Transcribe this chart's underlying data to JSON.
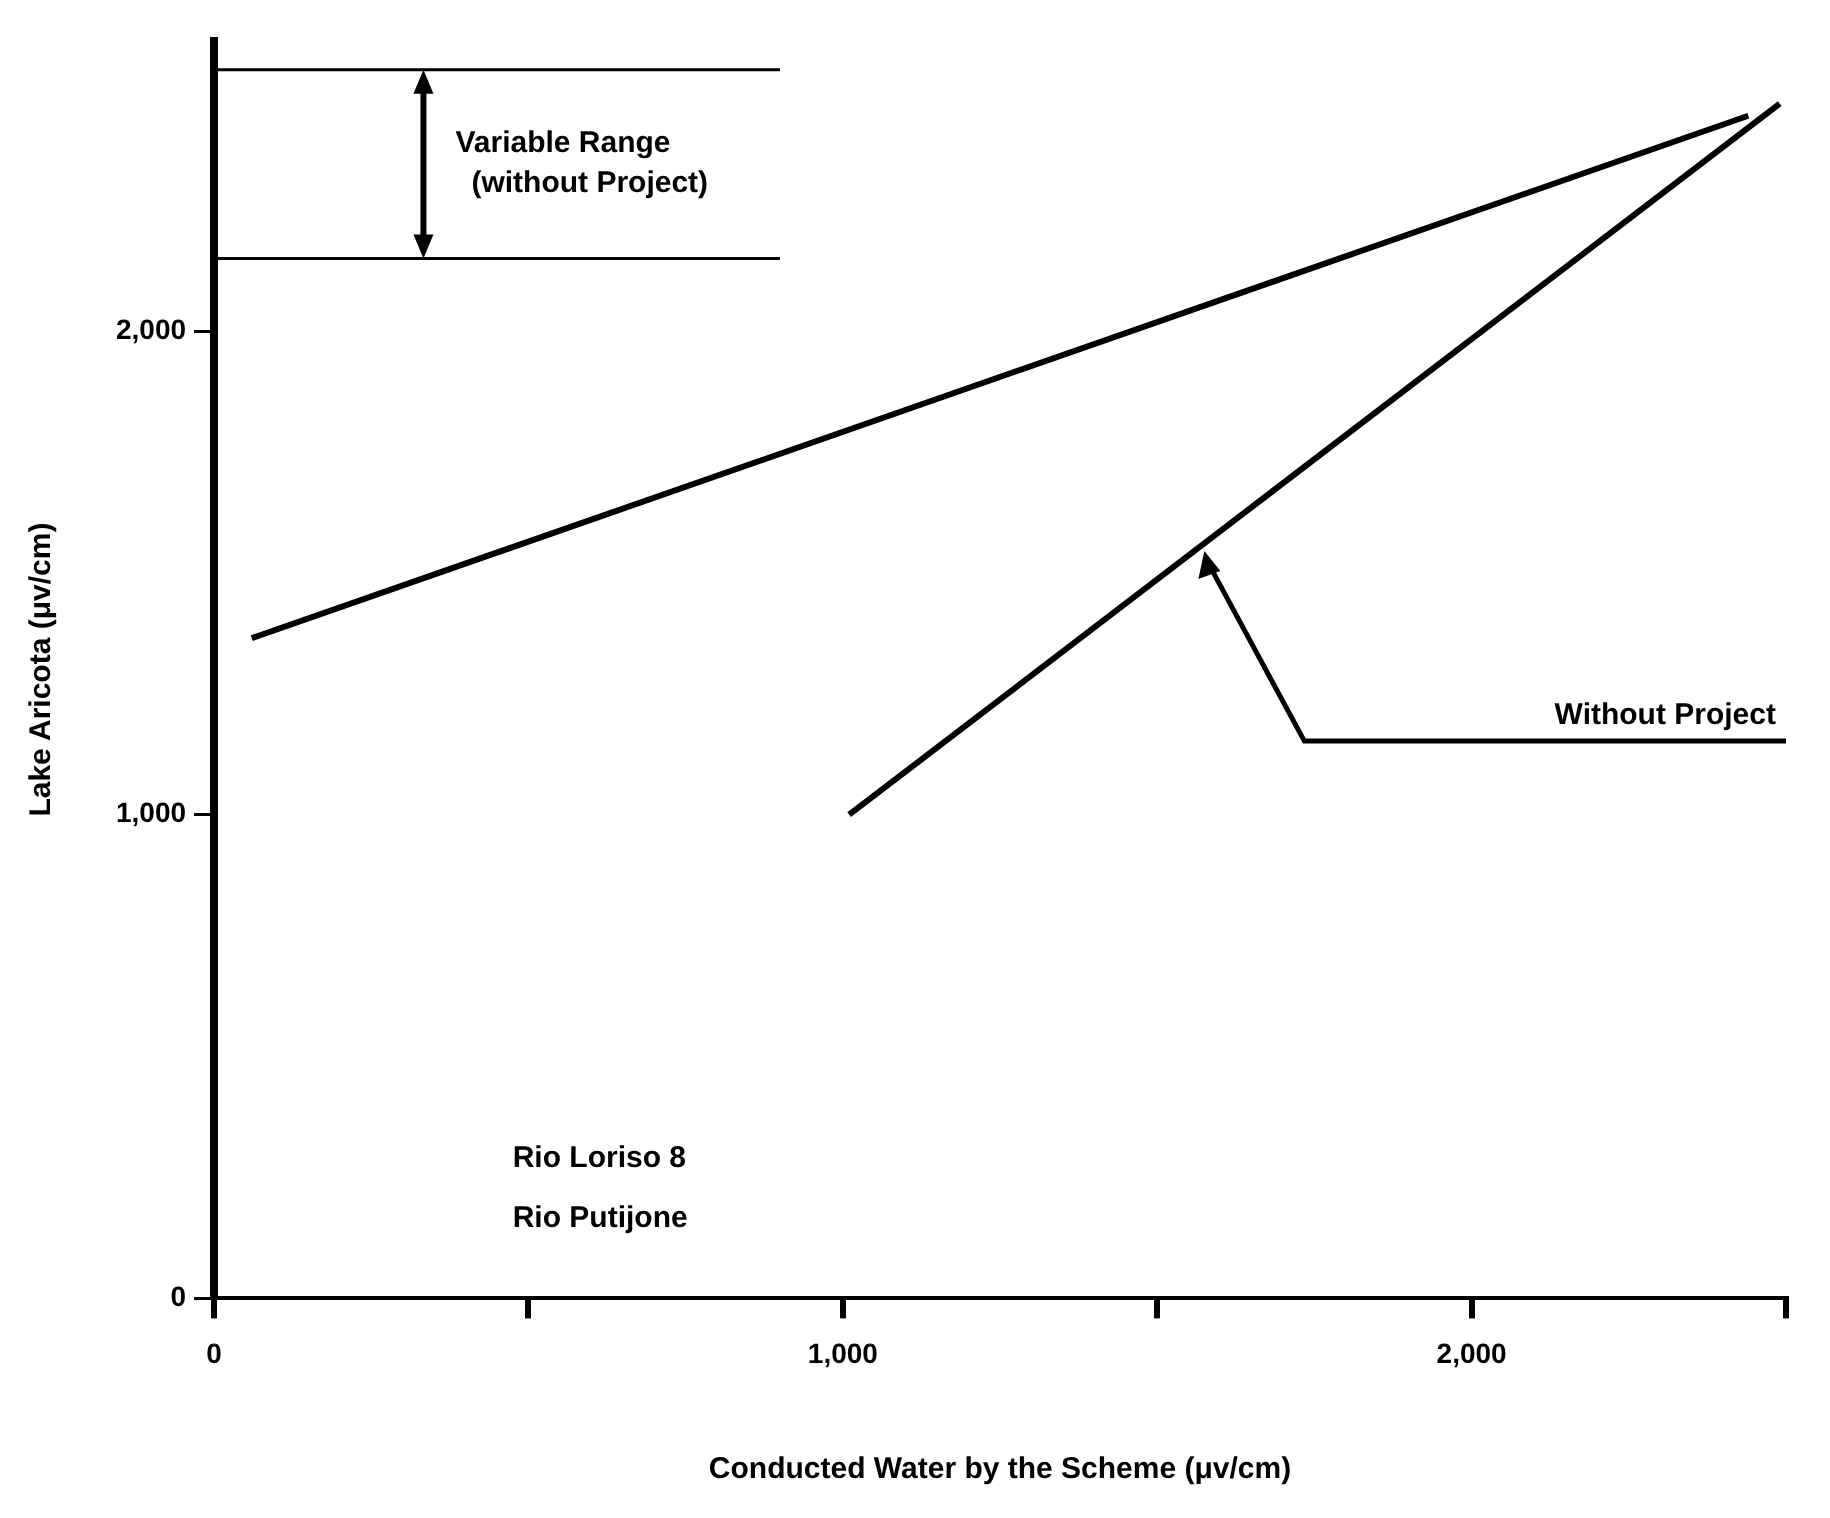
{
  "chart_data": {
    "type": "line",
    "xlabel": "Conducted Water by the Scheme (μv/cm)",
    "ylabel": "Lake Aricota (μv/cm)",
    "xlim": [
      0,
      2500
    ],
    "xticks": [
      0,
      {
        "value": 500,
        "label": null
      },
      {
        "value": 1000,
        "label": "1,000"
      },
      {
        "value": 1500,
        "label": null
      },
      {
        "value": 2000,
        "label": "2,000"
      },
      {
        "value": 2500,
        "label": null
      }
    ],
    "ylim": [
      0,
      2600
    ],
    "yticks": [
      0,
      {
        "value": 1000,
        "label": "1,000"
      },
      {
        "value": 2000,
        "label": "2,000"
      }
    ],
    "series": [
      {
        "color": "#000000",
        "x": [
          60,
          2440
        ],
        "values": [
          1365,
          2445
        ]
      },
      {
        "color": "#000000",
        "x": [
          1010,
          2490
        ],
        "values": [
          1000,
          2470
        ]
      }
    ],
    "ref_lines": [
      {
        "axis": "y",
        "value": 2540,
        "label": "Variable Range (without Project)"
      },
      {
        "axis": "y",
        "value": 2150
      }
    ],
    "annotations": [
      {
        "text": "Without Project",
        "x": 1575,
        "y": 1545
      },
      "Rio Loriso 8",
      "Rio Putijone"
    ],
    "grid": false,
    "legend": false,
    "marker": "none",
    "line_style": "solid"
  }
}
